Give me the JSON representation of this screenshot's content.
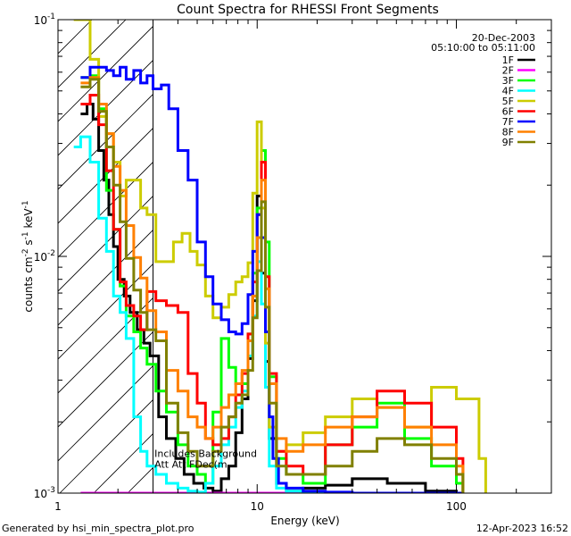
{
  "chart_data": {
    "type": "line",
    "title": "Count Spectra for RHESSI Front Segments",
    "xlabel": "Energy (keV)",
    "ylabel_parts": [
      "counts cm",
      "-2",
      " s",
      "-1",
      " keV",
      "-1"
    ],
    "xscale": "log",
    "yscale": "log",
    "xlim": [
      1,
      300
    ],
    "ylim": [
      0.001,
      0.1
    ],
    "x_ticks": [
      {
        "value": 1,
        "label": "1"
      },
      {
        "value": 10,
        "label": "10"
      },
      {
        "value": 100,
        "label": "100"
      }
    ],
    "y_ticks": [
      {
        "value": 0.001,
        "base": "10",
        "exp": "-3"
      },
      {
        "value": 0.01,
        "base": "10",
        "exp": "-2"
      },
      {
        "value": 0.1,
        "base": "10",
        "exp": "-1"
      }
    ],
    "hatched_region": {
      "xmin": 1,
      "xmax": 3.0
    },
    "annotation": {
      "lines": [
        "Includes Background",
        "Att Att FDec(m"
      ],
      "x": 3.05,
      "y": 0.00142
    },
    "date_text": "20-Dec-2003",
    "time_range_text": "05:10:00 to 05:11:00",
    "legend_position": "top-right",
    "series": [
      {
        "name": "1F",
        "color": "#000000",
        "x": [
          1.3,
          1.4,
          1.5,
          1.6,
          1.7,
          1.8,
          1.9,
          2.0,
          2.15,
          2.3,
          2.5,
          2.7,
          2.9,
          3.2,
          3.5,
          3.9,
          4.3,
          4.8,
          5.4,
          6.0,
          6.6,
          7.2,
          7.8,
          8.4,
          9.0,
          9.5,
          10.0,
          10.5,
          11.0,
          11.5,
          12.5,
          14,
          17,
          22,
          30,
          45,
          70,
          100
        ],
        "y": [
          0.04,
          0.044,
          0.038,
          0.028,
          0.021,
          0.015,
          0.011,
          0.008,
          0.0068,
          0.0058,
          0.0049,
          0.0043,
          0.0038,
          0.0021,
          0.0017,
          0.0014,
          0.0012,
          0.0011,
          0.00105,
          0.00102,
          0.00115,
          0.0013,
          0.0018,
          0.0025,
          0.0037,
          0.0065,
          0.018,
          0.0085,
          0.0036,
          0.0017,
          0.0011,
          0.00102,
          0.00105,
          0.00108,
          0.00115,
          0.0011,
          0.00102,
          0.001
        ]
      },
      {
        "name": "2F",
        "color": "#ff00ff",
        "x": [
          1.3,
          1.5,
          1.8,
          2.1,
          2.5,
          3.0,
          4.0,
          6.0,
          8.0,
          9.5,
          10.2,
          11.0,
          12.0,
          15.0
        ],
        "y": [
          0.001,
          0.001,
          0.001,
          0.001,
          0.001,
          0.001,
          0.001,
          0.001,
          0.001,
          0.001,
          0.001,
          0.001,
          0.001,
          0.001
        ]
      },
      {
        "name": "3F",
        "color": "#00ff00",
        "x": [
          1.3,
          1.45,
          1.6,
          1.75,
          1.9,
          2.05,
          2.2,
          2.4,
          2.6,
          2.8,
          3.1,
          3.5,
          4.0,
          4.5,
          5.0,
          5.5,
          6.0,
          6.6,
          7.2,
          7.8,
          8.4,
          9.0,
          9.5,
          10.0,
          10.5,
          11.0,
          11.5,
          12.5,
          14,
          17,
          22,
          30,
          40,
          55,
          75,
          100
        ],
        "y": [
          0.057,
          0.058,
          0.042,
          0.019,
          0.013,
          0.0075,
          0.0056,
          0.0048,
          0.0041,
          0.0035,
          0.0027,
          0.0022,
          0.0016,
          0.0013,
          0.0012,
          0.0011,
          0.0022,
          0.0045,
          0.0034,
          0.0029,
          0.0029,
          0.0047,
          0.0085,
          0.016,
          0.028,
          0.0115,
          0.0031,
          0.0014,
          0.0012,
          0.0011,
          0.0016,
          0.0019,
          0.0024,
          0.0017,
          0.0013,
          0.0011
        ]
      },
      {
        "name": "4F",
        "color": "#00ffff",
        "x": [
          1.2,
          1.3,
          1.45,
          1.6,
          1.75,
          1.9,
          2.05,
          2.2,
          2.4,
          2.6,
          2.8,
          3.1,
          3.5,
          4.0,
          4.5,
          5.0,
          5.5,
          6.0,
          6.6,
          7.2,
          7.8,
          8.4,
          9.0,
          9.5,
          10.0,
          10.5,
          11.0,
          11.5,
          12.5,
          14,
          17,
          22,
          30,
          45,
          70,
          100
        ],
        "y": [
          0.029,
          0.032,
          0.025,
          0.0145,
          0.0105,
          0.0068,
          0.0058,
          0.0045,
          0.0021,
          0.0015,
          0.0013,
          0.0012,
          0.0011,
          0.00105,
          0.00102,
          0.00101,
          0.0011,
          0.0013,
          0.0016,
          0.0019,
          0.0023,
          0.0027,
          0.0038,
          0.0056,
          0.0095,
          0.0063,
          0.0028,
          0.0013,
          0.00105,
          0.00102,
          0.00101,
          0.001,
          0.001,
          0.001,
          0.001,
          0.001
        ]
      },
      {
        "name": "5F",
        "color": "#cccc00",
        "x": [
          1.2,
          1.3,
          1.45,
          1.6,
          1.75,
          1.9,
          2.05,
          2.2,
          2.4,
          2.6,
          2.8,
          3.1,
          3.4,
          3.8,
          4.2,
          4.6,
          5.0,
          5.5,
          6.0,
          6.6,
          7.2,
          7.8,
          8.4,
          9.0,
          9.5,
          10.0,
          10.5,
          11.0,
          11.5,
          12.5,
          14,
          17,
          22,
          30,
          40,
          55,
          75,
          100,
          130
        ],
        "y": [
          0.1,
          0.1,
          0.068,
          0.039,
          0.033,
          0.025,
          0.018,
          0.021,
          0.021,
          0.016,
          0.015,
          0.0095,
          0.0095,
          0.0115,
          0.0125,
          0.0105,
          0.0092,
          0.0068,
          0.0055,
          0.0061,
          0.0069,
          0.0078,
          0.0082,
          0.0094,
          0.0185,
          0.037,
          0.016,
          0.0043,
          0.0019,
          0.0015,
          0.0016,
          0.0018,
          0.0021,
          0.0025,
          0.0023,
          0.0019,
          0.0028,
          0.0025,
          0.0014
        ]
      },
      {
        "name": "6F",
        "color": "#ff0000",
        "x": [
          1.3,
          1.45,
          1.6,
          1.75,
          1.9,
          2.05,
          2.2,
          2.4,
          2.6,
          2.8,
          3.1,
          3.5,
          4.0,
          4.5,
          5.0,
          5.5,
          6.0,
          6.6,
          7.2,
          7.8,
          8.4,
          9.0,
          9.5,
          10.0,
          10.5,
          11.0,
          11.5,
          12.5,
          14,
          17,
          22,
          30,
          40,
          55,
          75,
          100
        ],
        "y": [
          0.044,
          0.048,
          0.036,
          0.023,
          0.013,
          0.0078,
          0.0062,
          0.0056,
          0.0049,
          0.0071,
          0.0065,
          0.0062,
          0.0058,
          0.0032,
          0.0024,
          0.0017,
          0.0016,
          0.0017,
          0.0021,
          0.0026,
          0.0032,
          0.0047,
          0.0078,
          0.015,
          0.025,
          0.0082,
          0.0032,
          0.0015,
          0.0013,
          0.0012,
          0.0016,
          0.0021,
          0.0027,
          0.0024,
          0.0019,
          0.0014
        ]
      },
      {
        "name": "7F",
        "color": "#0000ff",
        "x": [
          1.3,
          1.45,
          1.6,
          1.75,
          1.9,
          2.05,
          2.2,
          2.4,
          2.6,
          2.8,
          3.0,
          3.3,
          3.6,
          4.0,
          4.5,
          5.0,
          5.5,
          6.0,
          6.6,
          7.2,
          7.8,
          8.4,
          9.0,
          9.5,
          10.0,
          10.5,
          11.0,
          11.5,
          12.0,
          12.8,
          14,
          17,
          22,
          30,
          45,
          70,
          100
        ],
        "y": [
          0.057,
          0.063,
          0.063,
          0.061,
          0.058,
          0.063,
          0.056,
          0.061,
          0.054,
          0.058,
          0.051,
          0.053,
          0.042,
          0.028,
          0.021,
          0.0115,
          0.0082,
          0.0063,
          0.0054,
          0.0048,
          0.0047,
          0.0052,
          0.0069,
          0.0105,
          0.015,
          0.012,
          0.0048,
          0.0021,
          0.0014,
          0.0011,
          0.00105,
          0.00102,
          0.00101,
          0.001,
          0.001,
          0.001,
          0.001
        ]
      },
      {
        "name": "8F",
        "color": "#ff8000",
        "x": [
          1.3,
          1.45,
          1.6,
          1.75,
          1.9,
          2.05,
          2.2,
          2.4,
          2.6,
          2.8,
          3.1,
          3.5,
          4.0,
          4.5,
          5.0,
          5.5,
          6.0,
          6.6,
          7.2,
          7.8,
          8.4,
          9.0,
          9.5,
          10.0,
          10.5,
          11.0,
          11.5,
          12.5,
          14,
          17,
          22,
          30,
          40,
          55,
          75,
          100
        ],
        "y": [
          0.054,
          0.057,
          0.044,
          0.033,
          0.024,
          0.019,
          0.0135,
          0.0099,
          0.0081,
          0.0059,
          0.0048,
          0.0033,
          0.0027,
          0.0021,
          0.0019,
          0.0017,
          0.0019,
          0.0023,
          0.0026,
          0.0029,
          0.0033,
          0.0044,
          0.0068,
          0.012,
          0.021,
          0.0073,
          0.0029,
          0.0017,
          0.0015,
          0.0016,
          0.0019,
          0.0021,
          0.0023,
          0.0019,
          0.0016,
          0.0013
        ]
      },
      {
        "name": "9F",
        "color": "#808000",
        "x": [
          1.3,
          1.45,
          1.6,
          1.75,
          1.9,
          2.05,
          2.2,
          2.4,
          2.6,
          2.8,
          3.1,
          3.5,
          4.0,
          4.5,
          5.0,
          5.5,
          6.0,
          6.6,
          7.2,
          7.8,
          8.4,
          9.0,
          9.5,
          10.0,
          10.5,
          11.0,
          11.5,
          12.5,
          14,
          17,
          22,
          30,
          40,
          55,
          75,
          100
        ],
        "y": [
          0.052,
          0.056,
          0.041,
          0.029,
          0.02,
          0.014,
          0.0098,
          0.0072,
          0.0058,
          0.0049,
          0.0044,
          0.0024,
          0.0018,
          0.0015,
          0.0013,
          0.0013,
          0.0015,
          0.0019,
          0.0021,
          0.0024,
          0.0026,
          0.0033,
          0.0055,
          0.0087,
          0.017,
          0.0061,
          0.0024,
          0.0013,
          0.0012,
          0.0012,
          0.0013,
          0.0015,
          0.0017,
          0.0016,
          0.0014,
          0.0012
        ]
      }
    ]
  },
  "footer": {
    "generator": "Generated by hsi_min_spectra_plot.pro",
    "timestamp": "12-Apr-2023 16:52"
  }
}
